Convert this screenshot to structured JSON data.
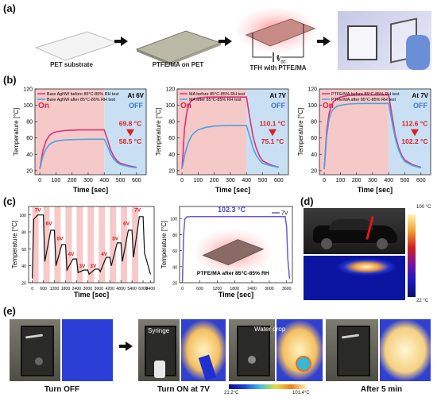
{
  "panel_labels": {
    "a": "(a)",
    "b": "(b)",
    "c": "(c)",
    "d": "(d)",
    "e": "(e)"
  },
  "row_a": {
    "steps": [
      "PET substrate",
      "PTFE/MA on PET",
      "TFH with PTFE/MA"
    ],
    "vdc": "V",
    "vdc_sub": "dc"
  },
  "chart_data": [
    {
      "type": "line",
      "title": "",
      "xlabel": "Time [sec]",
      "ylabel": "Temperature [°C]",
      "xlim": [
        -30,
        660
      ],
      "ylim": [
        15,
        120
      ],
      "xticks": [
        0,
        100,
        200,
        300,
        400,
        500,
        600
      ],
      "yticks": [
        20,
        40,
        60,
        80,
        100,
        120
      ],
      "legend": "top-left",
      "corner_label": "At 6V",
      "zone_labels": {
        "on": "On",
        "off": "OFF"
      },
      "switch_time": 400,
      "series": [
        {
          "name": "Bare AgNW before 85°C-85% RH test",
          "color": "#e0307a",
          "x": [
            0,
            20,
            40,
            60,
            80,
            100,
            150,
            200,
            250,
            300,
            350,
            400,
            420,
            440,
            460,
            480,
            500,
            550,
            600
          ],
          "values": [
            22,
            45,
            57,
            63,
            66,
            67.5,
            69,
            69.5,
            69.8,
            69.8,
            69.8,
            69.8,
            58,
            45,
            37,
            32,
            29,
            26,
            24
          ]
        },
        {
          "name": "Bare AgNW after 85°C-85% RH test",
          "color": "#4aa3e0",
          "x": [
            0,
            20,
            40,
            60,
            80,
            100,
            150,
            200,
            250,
            300,
            350,
            400,
            420,
            440,
            460,
            480,
            500,
            550,
            600
          ],
          "values": [
            22,
            38,
            47,
            52,
            54.5,
            56,
            57.5,
            58,
            58.3,
            58.5,
            58.5,
            58.5,
            50,
            40,
            34,
            30,
            27.5,
            25,
            23.5
          ]
        }
      ],
      "annotations": [
        {
          "text": "69.8 °C",
          "color": "#e02020"
        },
        {
          "text": "58.5 °C",
          "color": "#e02020"
        }
      ]
    },
    {
      "type": "line",
      "title": "",
      "xlabel": "Time [sec]",
      "ylabel": "Temperature [°C]",
      "xlim": [
        -30,
        660
      ],
      "ylim": [
        15,
        120
      ],
      "xticks": [
        0,
        100,
        200,
        300,
        400,
        500,
        600
      ],
      "yticks": [
        20,
        40,
        60,
        80,
        100,
        120
      ],
      "legend": "top-left",
      "corner_label": "At 7V",
      "zone_labels": {
        "on": "On",
        "off": "OFF"
      },
      "switch_time": 400,
      "series": [
        {
          "name": "MA before 85°C-85% RH test",
          "color": "#e0307a",
          "x": [
            0,
            15,
            30,
            45,
            60,
            80,
            100,
            150,
            200,
            250,
            300,
            350,
            400,
            420,
            440,
            460,
            480,
            500,
            550,
            600
          ],
          "values": [
            22,
            70,
            92,
            102,
            106,
            108,
            109,
            110,
            110.1,
            110.1,
            110.1,
            110.1,
            110.1,
            85,
            62,
            48,
            38,
            32,
            27,
            24
          ]
        },
        {
          "name": "MA after 85°C-85% RH test",
          "color": "#4aa3e0",
          "x": [
            0,
            20,
            40,
            60,
            80,
            100,
            150,
            200,
            250,
            300,
            350,
            400,
            420,
            440,
            460,
            480,
            500,
            550,
            600
          ],
          "values": [
            22,
            42,
            55,
            63,
            67,
            70,
            73,
            74.5,
            75,
            75.1,
            75.1,
            75.1,
            62,
            48,
            39,
            33,
            29,
            26,
            24
          ]
        }
      ],
      "annotations": [
        {
          "text": "110.1 °C",
          "color": "#e02020"
        },
        {
          "text": "75.1 °C",
          "color": "#e02020"
        }
      ]
    },
    {
      "type": "line",
      "title": "",
      "xlabel": "Time [sec]",
      "ylabel": "Temperature [°C]",
      "xlim": [
        -30,
        660
      ],
      "ylim": [
        15,
        120
      ],
      "xticks": [
        0,
        100,
        200,
        300,
        400,
        500,
        600
      ],
      "yticks": [
        20,
        40,
        60,
        80,
        100,
        120
      ],
      "legend": "top-left",
      "corner_label": "At 7V",
      "zone_labels": {
        "on": "On",
        "off": "OFF"
      },
      "switch_time": 400,
      "series": [
        {
          "name": "PTFE/MA before 85°C-85% RH test",
          "color": "#e0307a",
          "x": [
            0,
            15,
            30,
            45,
            60,
            80,
            100,
            150,
            200,
            250,
            300,
            350,
            400,
            420,
            440,
            460,
            480,
            500,
            550,
            600
          ],
          "values": [
            22,
            68,
            90,
            100,
            105,
            108,
            110,
            112,
            112.5,
            112.6,
            112.6,
            112.6,
            112.6,
            88,
            64,
            49,
            39,
            33,
            27,
            24
          ]
        },
        {
          "name": "PTFE/MA after 85°C-85% RH test",
          "color": "#4aa3e0",
          "x": [
            0,
            15,
            30,
            45,
            60,
            80,
            100,
            150,
            200,
            250,
            300,
            350,
            400,
            420,
            440,
            460,
            480,
            500,
            550,
            600
          ],
          "values": [
            22,
            62,
            83,
            92,
            96,
            99,
            100,
            101.5,
            102,
            102.2,
            102.2,
            102.2,
            102.2,
            80,
            60,
            46,
            37,
            31,
            26,
            23.5
          ]
        }
      ],
      "annotations": [
        {
          "text": "112.6 °C",
          "color": "#e02020"
        },
        {
          "text": "102.2 °C",
          "color": "#e02020"
        }
      ]
    },
    {
      "type": "line",
      "title": "",
      "xlabel": "Time [sec]",
      "ylabel": "Temperature [°C]",
      "xlim": [
        -200,
        6600
      ],
      "ylim": [
        20,
        110
      ],
      "xticks": [
        0,
        600,
        1200,
        1800,
        2400,
        3000,
        3600,
        4200,
        4800,
        5400,
        6000,
        6400
      ],
      "yticks": [
        20,
        40,
        60,
        80,
        100
      ],
      "voltage_labels": [
        "7V",
        "6V",
        "5V",
        "4V",
        "3V",
        "3V",
        "4V",
        "5V",
        "6V",
        "7V"
      ],
      "series": [
        {
          "name": "Temperature",
          "color": "#111111",
          "x": [
            0,
            80,
            300,
            600,
            680,
            1000,
            1200,
            1280,
            1600,
            1800,
            1880,
            2200,
            2400,
            2480,
            2800,
            3000,
            3080,
            3400,
            3600,
            3680,
            4000,
            4200,
            4280,
            4600,
            4800,
            4880,
            5200,
            5400,
            5480,
            5800,
            6000,
            6080,
            6400
          ],
          "values": [
            25,
            95,
            100,
            100,
            45,
            82,
            82,
            40,
            65,
            65,
            35,
            48,
            48,
            32,
            35,
            35,
            30,
            36,
            36,
            33,
            50,
            50,
            40,
            67,
            67,
            45,
            82,
            82,
            50,
            98,
            98,
            55,
            30
          ]
        }
      ]
    },
    {
      "type": "line",
      "title": "",
      "xlabel": "Time [sec]",
      "ylabel": "Temperature [°C]",
      "xlim": [
        -100,
        3800
      ],
      "ylim": [
        20,
        115
      ],
      "xticks": [
        0,
        600,
        1200,
        1800,
        2400,
        3000,
        3600
      ],
      "yticks": [
        20,
        40,
        60,
        80,
        100
      ],
      "legend": "top-right",
      "peak_label": "102.3 °C",
      "inset_label": "PTFE/MA after 85°C-85% RH",
      "series": [
        {
          "name": "7V",
          "color": "#6a5acd",
          "x": [
            0,
            40,
            80,
            150,
            300,
            600,
            1200,
            1800,
            2400,
            3000,
            3550,
            3600,
            3640,
            3700
          ],
          "values": [
            22,
            80,
            99,
            102,
            102.3,
            102.3,
            102.3,
            102.3,
            102.3,
            102.3,
            102.3,
            90,
            50,
            25
          ]
        }
      ]
    }
  ],
  "panel_d": {
    "scale_top": "100 °C",
    "scale_bottom": "22 °C"
  },
  "panel_e": {
    "captions": [
      "Turn OFF",
      "Turn ON at 7V",
      "After 5 min"
    ],
    "syringe_label": "Syringe",
    "water_label": "Water drop",
    "scale_min": "21.2°C",
    "scale_max": "101.4°C"
  },
  "colors": {
    "on_zone": "#f6c9c9",
    "off_zone": "#c9dff3",
    "hot": "#e0307a",
    "cool": "#4aa3e0"
  }
}
